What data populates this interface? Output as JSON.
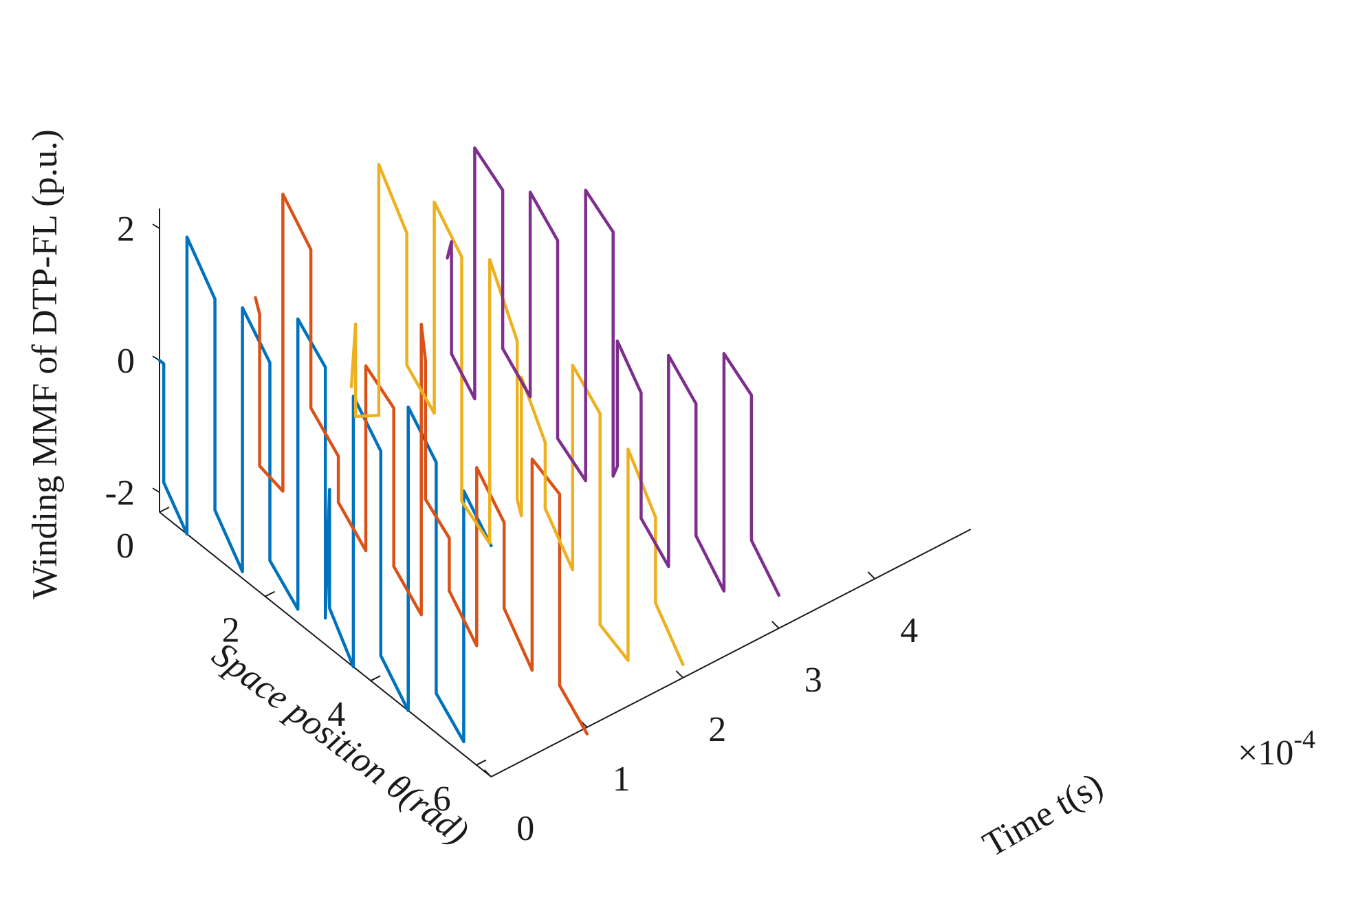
{
  "chart_data": {
    "type": "line",
    "projection": "3d",
    "zlabel": "Winding MMF of DTP-FL (p.u.)",
    "ylabel": "Space position θ(rad)",
    "xlabel": "Time t(s)",
    "x_exponent": "×10",
    "x_exponent_power": "-4",
    "xlim": [
      0,
      5
    ],
    "ylim": [
      0,
      6.28
    ],
    "zlim": [
      -2.3,
      2.3
    ],
    "x_ticks": [
      0,
      1,
      2,
      3,
      4
    ],
    "x_tick_labels": [
      "0",
      "1",
      "2",
      "3",
      "4"
    ],
    "y_ticks": [
      0,
      2,
      4,
      6
    ],
    "y_tick_labels": [
      "0",
      "2",
      "4",
      "6"
    ],
    "z_ticks": [
      -2,
      0,
      2
    ],
    "z_tick_labels": [
      "-2",
      "0",
      "2"
    ],
    "grid": false,
    "legend": "none",
    "series": [
      {
        "color": "#0072BD",
        "x": 0,
        "theta": [
          0,
          0.08,
          0.08,
          0.52,
          0.52,
          1.05,
          1.05,
          1.57,
          1.57,
          2.09,
          2.09,
          2.62,
          2.62,
          3.14,
          3.14,
          3.22,
          3.22,
          3.67,
          3.67,
          4.19,
          4.19,
          4.71,
          4.71,
          5.24,
          5.24,
          5.76,
          5.76,
          6.28
        ],
        "mmf": [
          0,
          0,
          -1.8,
          -2.3,
          2.2,
          1.6,
          -1.6,
          -2.2,
          1.8,
          1.3,
          -1.7,
          -2.1,
          2.3,
          1.9,
          -1.9,
          0.1,
          -1.7,
          -2.3,
          1.8,
          1.3,
          -1.8,
          -2.3,
          2.3,
          1.8,
          -1.7,
          -2.1,
          1.7,
          1.2
        ]
      },
      {
        "color": "#D95319",
        "x": 1,
        "theta": [
          0,
          0.08,
          0.08,
          0.52,
          0.52,
          1.05,
          1.05,
          1.57,
          1.57,
          2.09,
          2.09,
          2.62,
          2.62,
          3.14,
          3.14,
          3.22,
          3.22,
          3.67,
          3.67,
          4.19,
          4.19,
          4.71,
          4.71,
          5.24,
          5.24,
          5.76,
          5.76,
          6.28
        ],
        "mmf": [
          0.2,
          0,
          -2.3,
          -2.4,
          2.1,
          1.6,
          -0.8,
          -1.2,
          -1.9,
          -2.3,
          0.5,
          0.2,
          -2.2,
          -2.6,
          1.8,
          1.3,
          -0.8,
          -1.1,
          -1.9,
          -2.4,
          0.3,
          -0.2,
          -1.5,
          -2.1,
          1.1,
          0.9,
          -2.0,
          -2.4
        ]
      },
      {
        "color": "#EDB120",
        "x": 2,
        "theta": [
          0,
          0.08,
          0.08,
          0.52,
          0.52,
          1.05,
          1.05,
          1.57,
          1.57,
          2.09,
          2.09,
          2.62,
          2.62,
          3.14,
          3.14,
          3.22,
          3.22,
          3.67,
          3.67,
          4.19,
          4.19,
          4.71,
          4.71,
          5.24,
          5.24,
          5.76,
          5.76,
          6.28
        ],
        "mmf": [
          -1.9,
          -0.9,
          -2.3,
          -2.0,
          1.8,
          1.1,
          -0.9,
          -1.3,
          1.9,
          1.4,
          -2.3,
          -2.6,
          1.7,
          0.8,
          -1.6,
          -1.8,
          0.3,
          -0.4,
          -1.4,
          -2.0,
          1.1,
          0.7,
          -2.5,
          -2.7,
          0.5,
          -0.2,
          -1.5,
          -2.1
        ]
      },
      {
        "color": "#7E2F8E",
        "x": 3,
        "theta": [
          0,
          0.08,
          0.08,
          0.52,
          0.52,
          1.05,
          1.05,
          1.57,
          1.57,
          2.09,
          2.09,
          2.62,
          2.62,
          3.14,
          3.14,
          3.22,
          3.22,
          3.67,
          3.67,
          4.19,
          4.19,
          4.71,
          4.71,
          5.24,
          5.24,
          5.76,
          5.76,
          6.28
        ],
        "mmf": [
          -0.7,
          -0.4,
          -2.1,
          -2.5,
          1.3,
          1.0,
          -1.4,
          -1.8,
          1.3,
          0.9,
          -2.1,
          -2.4,
          2.0,
          1.7,
          -2.0,
          -1.8,
          0.1,
          -0.4,
          -2.3,
          -2.7,
          0.5,
          0.1,
          -1.9,
          -2.4,
          1.2,
          0.9,
          -1.3,
          -1.8
        ]
      }
    ]
  }
}
